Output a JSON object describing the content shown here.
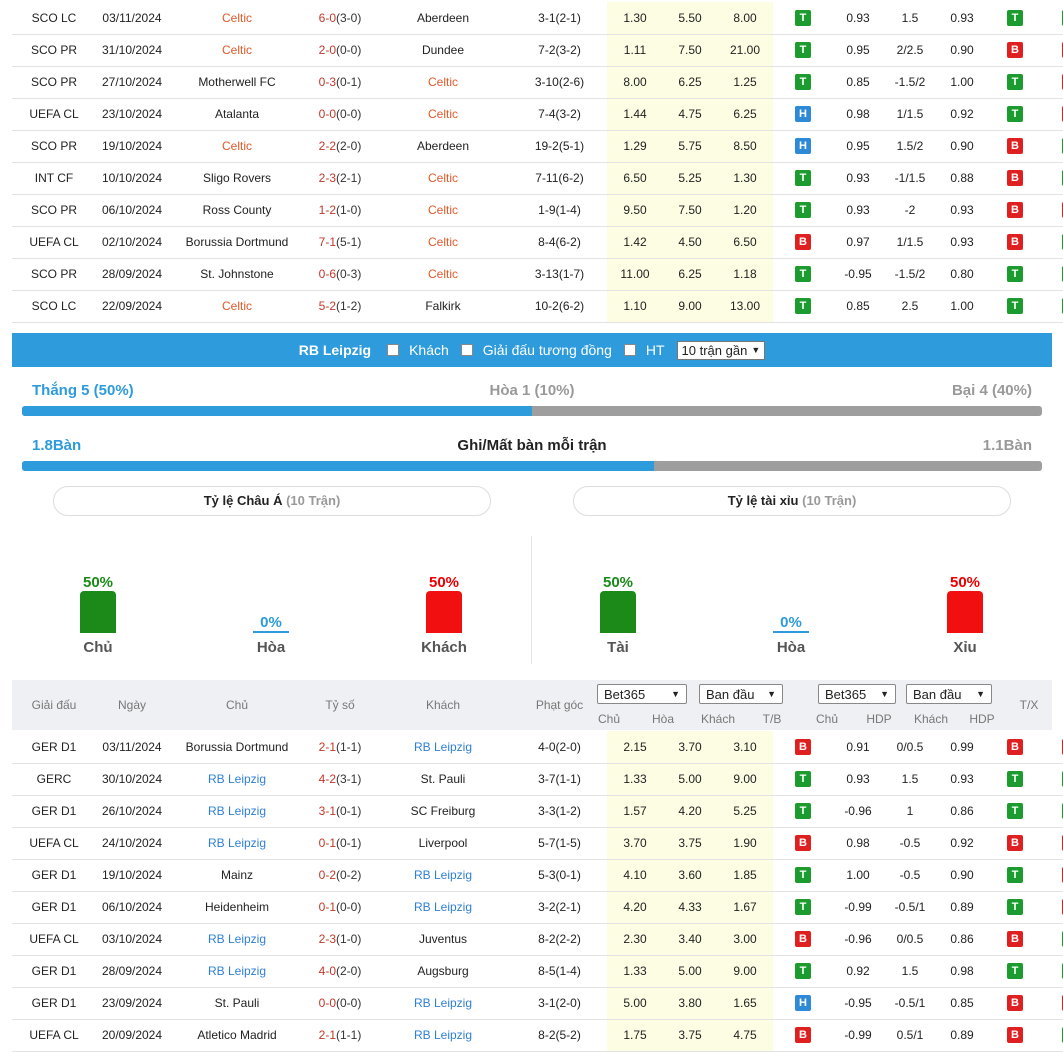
{
  "top_matches": [
    {
      "league": "SCO LC",
      "date": "03/11/2024",
      "home": "Celtic",
      "home_hl": true,
      "score": "6-0",
      "ht": "(3-0)",
      "away": "Aberdeen",
      "away_hl": false,
      "corner": "3-1(2-1)",
      "o1": "1.30",
      "o2": "5.50",
      "o3": "8.00",
      "tb": "T",
      "h1": "0.93",
      "hdp": "1.5",
      "h2": "0.93",
      "r1": "T",
      "r2": "T"
    },
    {
      "league": "SCO PR",
      "date": "31/10/2024",
      "home": "Celtic",
      "home_hl": true,
      "score": "2-0",
      "ht": "(0-0)",
      "away": "Dundee",
      "away_hl": false,
      "corner": "7-2(3-2)",
      "o1": "1.11",
      "o2": "7.50",
      "o3": "21.00",
      "tb": "T",
      "h1": "0.95",
      "hdp": "2/2.5",
      "h2": "0.90",
      "r1": "B",
      "r2": "X"
    },
    {
      "league": "SCO PR",
      "date": "27/10/2024",
      "home": "Motherwell FC",
      "home_hl": false,
      "score": "0-3",
      "ht": "(0-1)",
      "away": "Celtic",
      "away_hl": true,
      "corner": "3-10(2-6)",
      "o1": "8.00",
      "o2": "6.25",
      "o3": "1.25",
      "tb": "T",
      "h1": "0.85",
      "hdp": "-1.5/2",
      "h2": "1.00",
      "r1": "T",
      "r2": "X"
    },
    {
      "league": "UEFA CL",
      "date": "23/10/2024",
      "home": "Atalanta",
      "home_hl": false,
      "score": "0-0",
      "ht": "(0-0)",
      "away": "Celtic",
      "away_hl": true,
      "corner": "7-4(3-2)",
      "o1": "1.44",
      "o2": "4.75",
      "o3": "6.25",
      "tb": "H",
      "h1": "0.98",
      "hdp": "1/1.5",
      "h2": "0.92",
      "r1": "T",
      "r2": "X"
    },
    {
      "league": "SCO PR",
      "date": "19/10/2024",
      "home": "Celtic",
      "home_hl": true,
      "score": "2-2",
      "ht": "(2-0)",
      "away": "Aberdeen",
      "away_hl": false,
      "corner": "19-2(5-1)",
      "o1": "1.29",
      "o2": "5.75",
      "o3": "8.50",
      "tb": "H",
      "h1": "0.95",
      "hdp": "1.5/2",
      "h2": "0.90",
      "r1": "B",
      "r2": "T"
    },
    {
      "league": "INT CF",
      "date": "10/10/2024",
      "home": "Sligo Rovers",
      "home_hl": false,
      "score": "2-3",
      "ht": "(2-1)",
      "away": "Celtic",
      "away_hl": true,
      "corner": "7-11(6-2)",
      "o1": "6.50",
      "o2": "5.25",
      "o3": "1.30",
      "tb": "T",
      "h1": "0.93",
      "hdp": "-1/1.5",
      "h2": "0.88",
      "r1": "B",
      "r2": "T"
    },
    {
      "league": "SCO PR",
      "date": "06/10/2024",
      "home": "Ross County",
      "home_hl": false,
      "score": "1-2",
      "ht": "(1-0)",
      "away": "Celtic",
      "away_hl": true,
      "corner": "1-9(1-4)",
      "o1": "9.50",
      "o2": "7.50",
      "o3": "1.20",
      "tb": "T",
      "h1": "0.93",
      "hdp": "-2",
      "h2": "0.93",
      "r1": "B",
      "r2": "X"
    },
    {
      "league": "UEFA CL",
      "date": "02/10/2024",
      "home": "Borussia Dortmund",
      "home_hl": false,
      "score": "7-1",
      "ht": "(5-1)",
      "away": "Celtic",
      "away_hl": true,
      "corner": "8-4(6-2)",
      "o1": "1.42",
      "o2": "4.50",
      "o3": "6.50",
      "tb": "B",
      "h1": "0.97",
      "hdp": "1/1.5",
      "h2": "0.93",
      "r1": "B",
      "r2": "T"
    },
    {
      "league": "SCO PR",
      "date": "28/09/2024",
      "home": "St. Johnstone",
      "home_hl": false,
      "score": "0-6",
      "ht": "(0-3)",
      "away": "Celtic",
      "away_hl": true,
      "corner": "3-13(1-7)",
      "o1": "11.00",
      "o2": "6.25",
      "o3": "1.18",
      "tb": "T",
      "h1": "-0.95",
      "hdp": "-1.5/2",
      "h2": "0.80",
      "r1": "T",
      "r2": "T"
    },
    {
      "league": "SCO LC",
      "date": "22/09/2024",
      "home": "Celtic",
      "home_hl": true,
      "score": "5-2",
      "ht": "(1-2)",
      "away": "Falkirk",
      "away_hl": false,
      "corner": "10-2(6-2)",
      "o1": "1.10",
      "o2": "9.00",
      "o3": "13.00",
      "tb": "T",
      "h1": "0.85",
      "hdp": "2.5",
      "h2": "1.00",
      "r1": "T",
      "r2": "T"
    }
  ],
  "team_bar": {
    "team": "RB Leipzig",
    "opt_away": "Khách",
    "opt_same_league": "Giải đấu tương đồng",
    "opt_ht": "HT",
    "select_value": "10 trận gần"
  },
  "summary": {
    "win": "Thắng 5 (50%)",
    "draw": "Hòa 1 (10%)",
    "loss": "Bại 4 (40%)",
    "win_ratio": 0.5,
    "goals_for": "1.8Bàn",
    "goals_title": "Ghi/Mất bàn mỗi trận",
    "goals_against": "1.1Bàn",
    "goals_ratio": 0.62
  },
  "asian": {
    "title": "Tỷ lệ Châu Á",
    "sub": "(10 Trận)",
    "home_pct": "50%",
    "home_label": "Chủ",
    "home_val": 0.5,
    "draw_pct": "0%",
    "draw_label": "Hòa",
    "draw_val": 0,
    "away_pct": "50%",
    "away_label": "Khách",
    "away_val": 0.5
  },
  "overunder": {
    "title": "Tỷ lệ tài xỉu",
    "sub": "(10 Trận)",
    "over_pct": "50%",
    "over_label": "Tài",
    "over_val": 0.5,
    "draw_pct": "0%",
    "draw_label": "Hòa",
    "draw_val": 0,
    "under_pct": "50%",
    "under_label": "Xỉu",
    "under_val": 0.5
  },
  "header": {
    "league": "Giải đấu",
    "date": "Ngày",
    "home": "Chủ",
    "score": "Tỷ số",
    "away": "Khách",
    "corner": "Phạt góc",
    "sel1": "Bet365",
    "sel2": "Ban đầu",
    "sel3": "Bet365",
    "sel4": "Ban đầu",
    "o_home": "Chủ",
    "o_draw": "Hòa",
    "o_away": "Khách",
    "tb": "T/B",
    "h_home": "Chủ",
    "hdp": "HDP",
    "h_away": "Khách",
    "hdp2": "HDP",
    "tx": "T/X"
  },
  "bottom_matches": [
    {
      "league": "GER D1",
      "date": "03/11/2024",
      "home": "Borussia Dortmund",
      "home_hl": false,
      "score": "2-1",
      "ht": "(1-1)",
      "away": "RB Leipzig",
      "away_hl": true,
      "corner": "4-0(2-0)",
      "o1": "2.15",
      "o2": "3.70",
      "o3": "3.10",
      "tb": "B",
      "h1": "0.91",
      "hdp": "0/0.5",
      "h2": "0.99",
      "r1": "B",
      "r2": "X"
    },
    {
      "league": "GERC",
      "date": "30/10/2024",
      "home": "RB Leipzig",
      "home_hl": true,
      "score": "4-2",
      "ht": "(3-1)",
      "away": "St. Pauli",
      "away_hl": false,
      "corner": "3-7(1-1)",
      "o1": "1.33",
      "o2": "5.00",
      "o3": "9.00",
      "tb": "T",
      "h1": "0.93",
      "hdp": "1.5",
      "h2": "0.93",
      "r1": "T",
      "r2": "T"
    },
    {
      "league": "GER D1",
      "date": "26/10/2024",
      "home": "RB Leipzig",
      "home_hl": true,
      "score": "3-1",
      "ht": "(0-1)",
      "away": "SC Freiburg",
      "away_hl": false,
      "corner": "3-3(1-2)",
      "o1": "1.57",
      "o2": "4.20",
      "o3": "5.25",
      "tb": "T",
      "h1": "-0.96",
      "hdp": "1",
      "h2": "0.86",
      "r1": "T",
      "r2": "T"
    },
    {
      "league": "UEFA CL",
      "date": "24/10/2024",
      "home": "RB Leipzig",
      "home_hl": true,
      "score": "0-1",
      "ht": "(0-1)",
      "away": "Liverpool",
      "away_hl": false,
      "corner": "5-7(1-5)",
      "o1": "3.70",
      "o2": "3.75",
      "o3": "1.90",
      "tb": "B",
      "h1": "0.98",
      "hdp": "-0.5",
      "h2": "0.92",
      "r1": "B",
      "r2": "X"
    },
    {
      "league": "GER D1",
      "date": "19/10/2024",
      "home": "Mainz",
      "home_hl": false,
      "score": "0-2",
      "ht": "(0-2)",
      "away": "RB Leipzig",
      "away_hl": true,
      "corner": "5-3(0-1)",
      "o1": "4.10",
      "o2": "3.60",
      "o3": "1.85",
      "tb": "T",
      "h1": "1.00",
      "hdp": "-0.5",
      "h2": "0.90",
      "r1": "T",
      "r2": "X"
    },
    {
      "league": "GER D1",
      "date": "06/10/2024",
      "home": "Heidenheim",
      "home_hl": false,
      "score": "0-1",
      "ht": "(0-0)",
      "away": "RB Leipzig",
      "away_hl": true,
      "corner": "3-2(2-1)",
      "o1": "4.20",
      "o2": "4.33",
      "o3": "1.67",
      "tb": "T",
      "h1": "-0.99",
      "hdp": "-0.5/1",
      "h2": "0.89",
      "r1": "T",
      "r2": "X"
    },
    {
      "league": "UEFA CL",
      "date": "03/10/2024",
      "home": "RB Leipzig",
      "home_hl": true,
      "score": "2-3",
      "ht": "(1-0)",
      "away": "Juventus",
      "away_hl": false,
      "corner": "8-2(2-2)",
      "o1": "2.30",
      "o2": "3.40",
      "o3": "3.00",
      "tb": "B",
      "h1": "-0.96",
      "hdp": "0/0.5",
      "h2": "0.86",
      "r1": "B",
      "r2": "T"
    },
    {
      "league": "GER D1",
      "date": "28/09/2024",
      "home": "RB Leipzig",
      "home_hl": true,
      "score": "4-0",
      "ht": "(2-0)",
      "away": "Augsburg",
      "away_hl": false,
      "corner": "8-5(1-4)",
      "o1": "1.33",
      "o2": "5.00",
      "o3": "9.00",
      "tb": "T",
      "h1": "0.92",
      "hdp": "1.5",
      "h2": "0.98",
      "r1": "T",
      "r2": "T"
    },
    {
      "league": "GER D1",
      "date": "23/09/2024",
      "home": "St. Pauli",
      "home_hl": false,
      "score": "0-0",
      "ht": "(0-0)",
      "away": "RB Leipzig",
      "away_hl": true,
      "corner": "3-1(2-0)",
      "o1": "5.00",
      "o2": "3.80",
      "o3": "1.65",
      "tb": "H",
      "h1": "-0.95",
      "hdp": "-0.5/1",
      "h2": "0.85",
      "r1": "B",
      "r2": "X"
    },
    {
      "league": "UEFA CL",
      "date": "20/09/2024",
      "home": "Atletico Madrid",
      "home_hl": false,
      "score": "2-1",
      "ht": "(1-1)",
      "away": "RB Leipzig",
      "away_hl": true,
      "corner": "8-2(5-2)",
      "o1": "1.75",
      "o2": "3.75",
      "o3": "4.75",
      "tb": "B",
      "h1": "-0.99",
      "hdp": "0.5/1",
      "h2": "0.89",
      "r1": "B",
      "r2": "T"
    }
  ]
}
